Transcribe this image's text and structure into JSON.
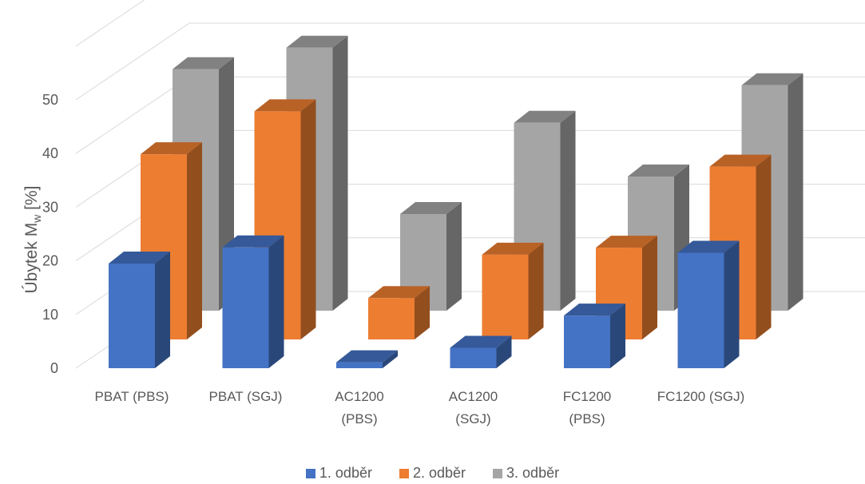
{
  "chart_data": {
    "type": "bar",
    "categories": [
      [
        "PBAT (PBS)"
      ],
      [
        "PBAT (SGJ)"
      ],
      [
        "AC1200",
        "(PBS)"
      ],
      [
        "AC1200",
        "(SGJ)"
      ],
      [
        "FC1200",
        "(PBS)"
      ],
      [
        "FC1200 (SGJ)"
      ]
    ],
    "series": [
      {
        "name": "1. odběr",
        "color": "#4472C4",
        "values": [
          19.5,
          22.5,
          1.1,
          3.8,
          9.8,
          21.5
        ]
      },
      {
        "name": "2. odběr",
        "color": "#ED7D31",
        "values": [
          34.5,
          42.5,
          7.7,
          15.8,
          17.1,
          32.2
        ]
      },
      {
        "name": "3. odběr",
        "color": "#A5A5A5",
        "values": [
          45.0,
          49.0,
          18.0,
          35.0,
          25.0,
          42.0
        ]
      }
    ],
    "ylabel_main": "Úbytek M",
    "ylabel_sub": "w",
    "ylabel_tail": " [%]",
    "yticks": [
      "0",
      "10",
      "20",
      "30",
      "40",
      "50"
    ],
    "ylim": [
      0,
      50
    ],
    "grid": true,
    "legend_position": "bottom"
  }
}
